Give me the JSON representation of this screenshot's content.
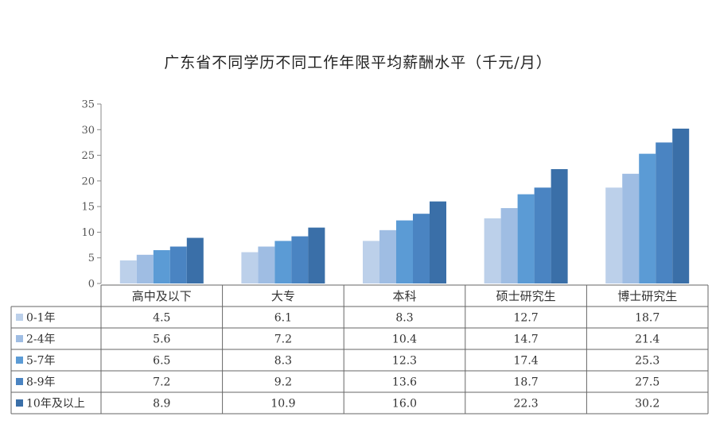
{
  "chart_data": {
    "type": "bar",
    "title": "广东省不同学历不同工作年限平均薪酬水平（千元/月）",
    "categories": [
      "高中及以下",
      "大专",
      "本科",
      "硕士研究生",
      "博士研究生"
    ],
    "series": [
      {
        "name": "0-1年",
        "values": [
          4.5,
          6.1,
          8.3,
          12.7,
          18.7
        ],
        "color": "#bcd0ea"
      },
      {
        "name": "2-4年",
        "values": [
          5.6,
          7.2,
          10.4,
          14.7,
          21.4
        ],
        "color": "#9fbde3"
      },
      {
        "name": "5-7年",
        "values": [
          6.5,
          8.3,
          12.3,
          17.4,
          25.3
        ],
        "color": "#5b9bd5"
      },
      {
        "name": "8-9年",
        "values": [
          7.2,
          9.2,
          13.6,
          18.7,
          27.5
        ],
        "color": "#4a84c2"
      },
      {
        "name": "10年及以上",
        "values": [
          8.9,
          10.9,
          16.0,
          22.3,
          30.2
        ],
        "color": "#3a6fa8"
      }
    ],
    "value_labels": [
      [
        "4.5",
        "6.1",
        "8.3",
        "12.7",
        "18.7"
      ],
      [
        "5.6",
        "7.2",
        "10.4",
        "14.7",
        "21.4"
      ],
      [
        "6.5",
        "8.3",
        "12.3",
        "17.4",
        "25.3"
      ],
      [
        "7.2",
        "9.2",
        "13.6",
        "18.7",
        "27.5"
      ],
      [
        "8.9",
        "10.9",
        "16.0",
        "22.3",
        "30.2"
      ]
    ],
    "ylim": [
      0,
      35
    ],
    "yticks": [
      0,
      5,
      10,
      15,
      20,
      25,
      30,
      35
    ],
    "grid": false,
    "legend": "data table below chart"
  }
}
